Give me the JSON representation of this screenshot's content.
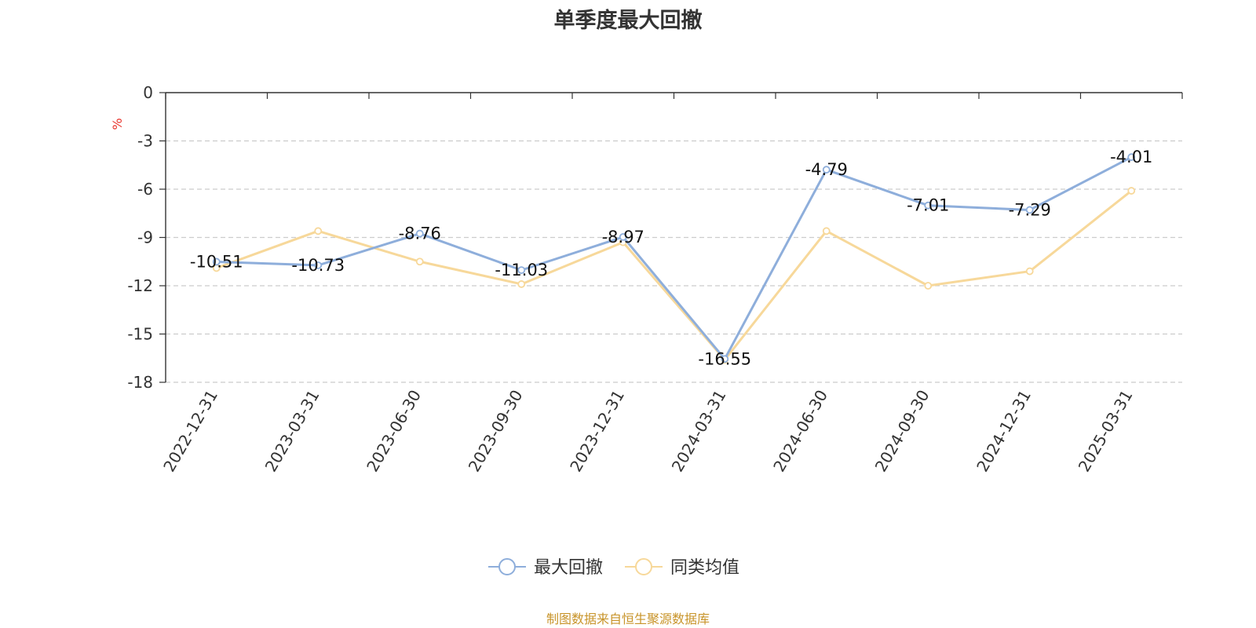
{
  "chart_data": {
    "type": "line",
    "title": "单季度最大回撤",
    "ylabel": "%",
    "categories": [
      "2022-12-31",
      "2023-03-31",
      "2023-06-30",
      "2023-09-30",
      "2023-12-31",
      "2024-03-31",
      "2024-06-30",
      "2024-09-30",
      "2024-12-31",
      "2025-03-31"
    ],
    "ylim": [
      -18,
      0
    ],
    "yticks": [
      "0",
      "-3",
      "-6",
      "-9",
      "-12",
      "-15",
      "-18"
    ],
    "grid": true,
    "legend_position": "bottom-center",
    "series": [
      {
        "name": "最大回撤",
        "color": "#8eaedb",
        "values": [
          -10.51,
          -10.73,
          -8.76,
          -11.03,
          -8.97,
          -16.55,
          -4.79,
          -7.01,
          -7.29,
          -4.01
        ],
        "labels": [
          "-10.51",
          "-10.73",
          "-8.76",
          "-11.03",
          "-8.97",
          "-16.55",
          "-4.79",
          "-7.01",
          "-7.29",
          "-4.01"
        ]
      },
      {
        "name": "同类均值",
        "color": "#f7d89a",
        "values": [
          -10.9,
          -8.6,
          -10.5,
          -11.9,
          -9.3,
          -16.6,
          -8.6,
          -12.0,
          -11.1,
          -6.1
        ]
      }
    ]
  },
  "footer": {
    "source": "制图数据来自恒生聚源数据库"
  }
}
